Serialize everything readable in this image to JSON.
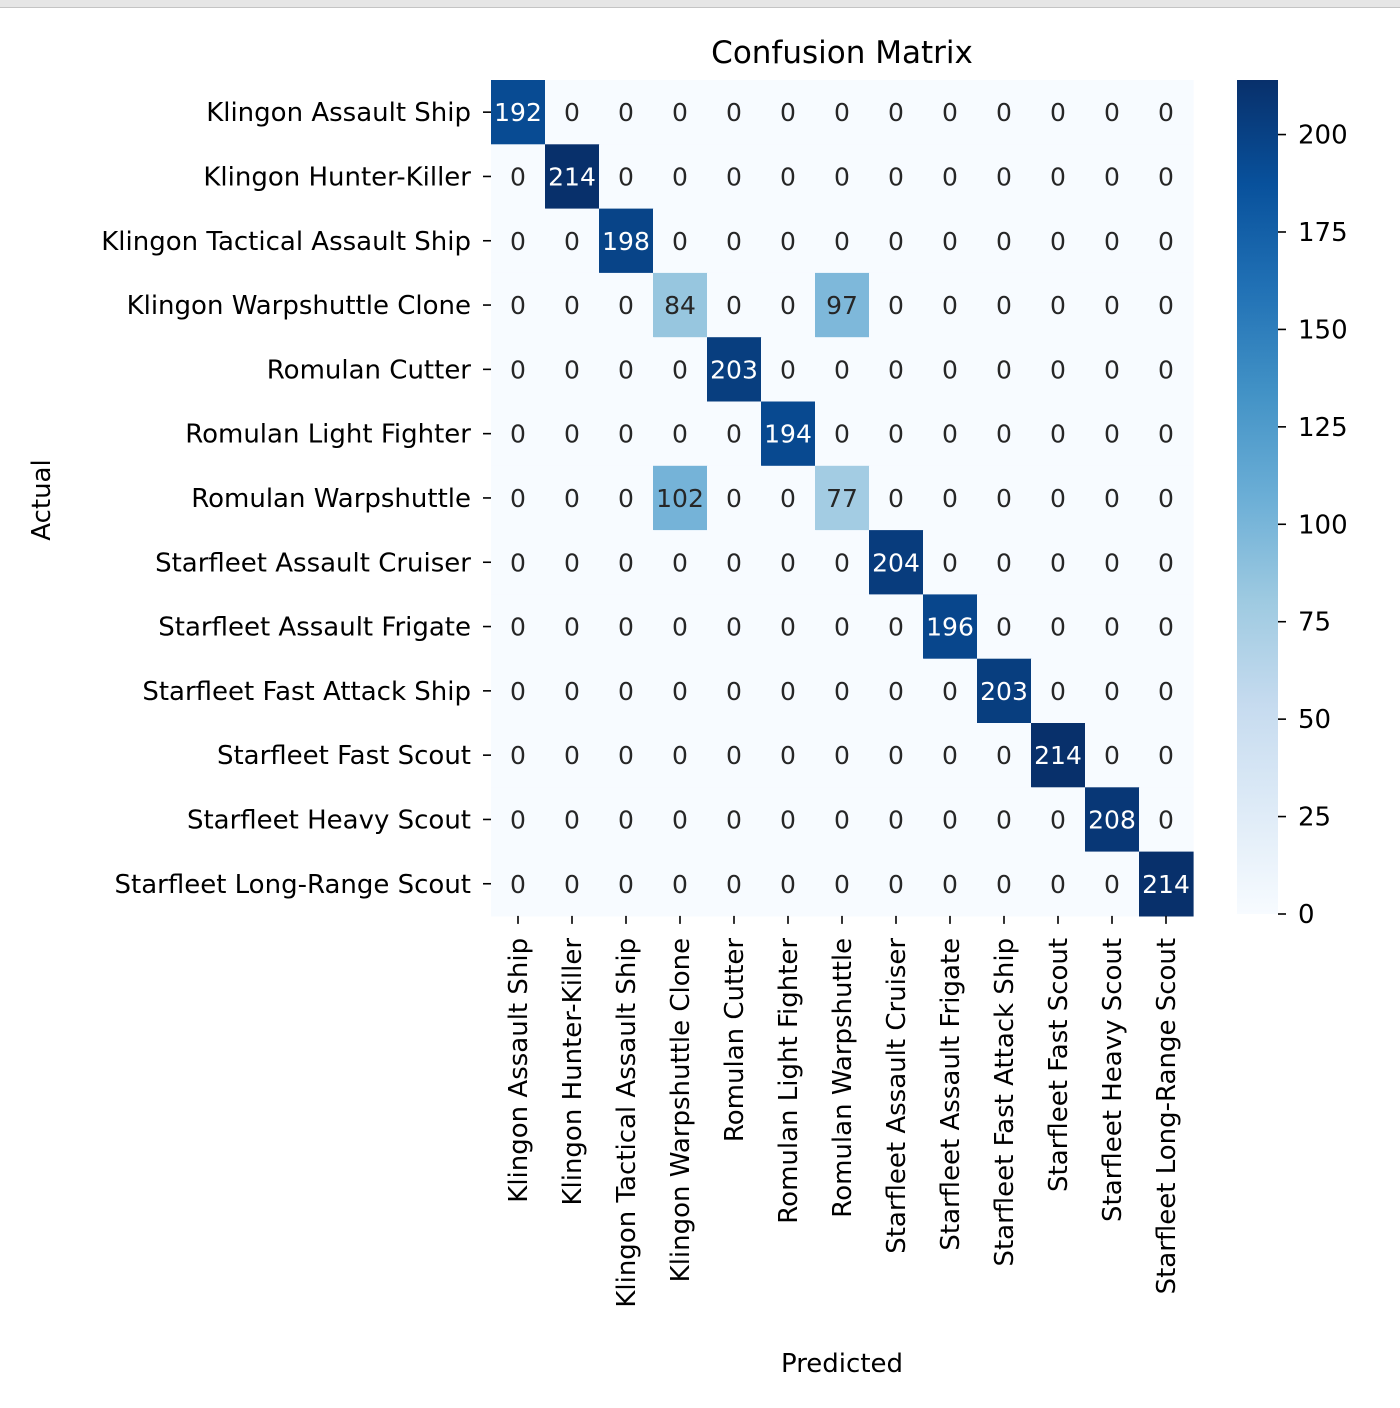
{
  "chart_data": {
    "type": "heatmap",
    "title": "Confusion Matrix",
    "xlabel": "Predicted",
    "ylabel": "Actual",
    "categories": [
      "Klingon Assault Ship",
      "Klingon Hunter-Killer",
      "Klingon Tactical Assault Ship",
      "Klingon Warpshuttle Clone",
      "Romulan Cutter",
      "Romulan Light Fighter",
      "Romulan Warpshuttle",
      "Starfleet Assault Cruiser",
      "Starfleet Assault Frigate",
      "Starfleet Fast Attack Ship",
      "Starfleet Fast Scout",
      "Starfleet Heavy Scout",
      "Starfleet Long-Range Scout"
    ],
    "matrix": [
      [
        192,
        0,
        0,
        0,
        0,
        0,
        0,
        0,
        0,
        0,
        0,
        0,
        0
      ],
      [
        0,
        214,
        0,
        0,
        0,
        0,
        0,
        0,
        0,
        0,
        0,
        0,
        0
      ],
      [
        0,
        0,
        198,
        0,
        0,
        0,
        0,
        0,
        0,
        0,
        0,
        0,
        0
      ],
      [
        0,
        0,
        0,
        84,
        0,
        0,
        97,
        0,
        0,
        0,
        0,
        0,
        0
      ],
      [
        0,
        0,
        0,
        0,
        203,
        0,
        0,
        0,
        0,
        0,
        0,
        0,
        0
      ],
      [
        0,
        0,
        0,
        0,
        0,
        194,
        0,
        0,
        0,
        0,
        0,
        0,
        0
      ],
      [
        0,
        0,
        0,
        102,
        0,
        0,
        77,
        0,
        0,
        0,
        0,
        0,
        0
      ],
      [
        0,
        0,
        0,
        0,
        0,
        0,
        0,
        204,
        0,
        0,
        0,
        0,
        0
      ],
      [
        0,
        0,
        0,
        0,
        0,
        0,
        0,
        0,
        196,
        0,
        0,
        0,
        0
      ],
      [
        0,
        0,
        0,
        0,
        0,
        0,
        0,
        0,
        0,
        203,
        0,
        0,
        0
      ],
      [
        0,
        0,
        0,
        0,
        0,
        0,
        0,
        0,
        0,
        0,
        214,
        0,
        0
      ],
      [
        0,
        0,
        0,
        0,
        0,
        0,
        0,
        0,
        0,
        0,
        0,
        208,
        0
      ],
      [
        0,
        0,
        0,
        0,
        0,
        0,
        0,
        0,
        0,
        0,
        0,
        0,
        214
      ]
    ],
    "colormap": "Blues",
    "color_range": [
      0,
      214
    ],
    "colorbar_ticks": [
      0,
      25,
      50,
      75,
      100,
      125,
      150,
      175,
      200
    ]
  }
}
